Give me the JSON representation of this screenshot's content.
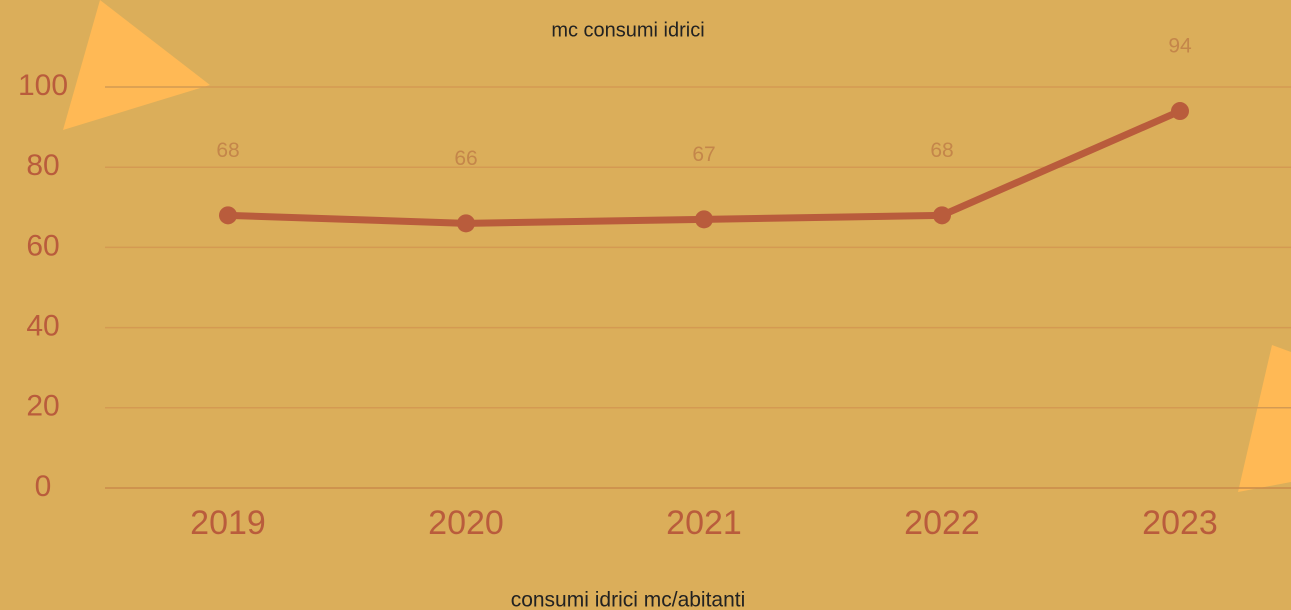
{
  "chart_data": {
    "type": "line",
    "title": "mc consumi idrici",
    "x_label": "consumi idrici mc/abitanti",
    "categories": [
      "2019",
      "2020",
      "2021",
      "2022",
      "2023"
    ],
    "values": [
      68,
      66,
      67,
      68,
      94
    ],
    "color": "#b95c3c",
    "ylim": [
      0,
      100
    ],
    "yticks": [
      0,
      20,
      40,
      60,
      80,
      100
    ],
    "grid": true
  }
}
